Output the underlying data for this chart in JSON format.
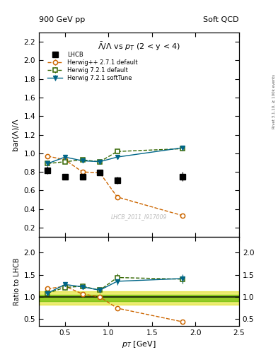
{
  "title_main": "$\\bar{\\Lambda}/\\Lambda$ vs $p_T$ (2 < y < 4)",
  "header_left": "900 GeV pp",
  "header_right": "Soft QCD",
  "right_label": "Rivet 3.1.10, ≥ 100k events",
  "watermark": "LHCB_2011_I917009",
  "xlabel": "$p_T$ [GeV]",
  "ylabel_main": "bar(Λ)/Λ",
  "ylabel_ratio": "Ratio to LHCB",
  "xlim": [
    0.2,
    2.5
  ],
  "ylim_main": [
    0.1,
    2.3
  ],
  "ylim_ratio": [
    0.35,
    2.35
  ],
  "lhcb_x": [
    0.3,
    0.5,
    0.7,
    0.9,
    1.1,
    1.85
  ],
  "lhcb_y": [
    0.82,
    0.75,
    0.75,
    0.79,
    0.71,
    0.75
  ],
  "lhcb_yerr": [
    0.04,
    0.03,
    0.03,
    0.03,
    0.04,
    0.05
  ],
  "herwig_pp_x": [
    0.3,
    0.5,
    0.7,
    0.9,
    1.1,
    1.85
  ],
  "herwig_pp_y": [
    0.97,
    0.93,
    0.8,
    0.79,
    0.53,
    0.33
  ],
  "herwig_pp_yerr": [
    0.02,
    0.02,
    0.02,
    0.02,
    0.02,
    0.02
  ],
  "herwig721d_x": [
    0.3,
    0.5,
    0.7,
    0.9,
    1.1,
    1.85
  ],
  "herwig721d_y": [
    0.89,
    0.91,
    0.93,
    0.91,
    1.02,
    1.05
  ],
  "herwig721d_yerr": [
    0.02,
    0.02,
    0.02,
    0.02,
    0.02,
    0.02
  ],
  "herwig721s_x": [
    0.3,
    0.5,
    0.7,
    0.9,
    1.1,
    1.85
  ],
  "herwig721s_y": [
    0.89,
    0.96,
    0.92,
    0.91,
    0.96,
    1.06
  ],
  "herwig721s_yerr": [
    0.02,
    0.02,
    0.02,
    0.02,
    0.02,
    0.02
  ],
  "color_lhcb": "#000000",
  "color_herwig_pp": "#cc6600",
  "color_herwig721d": "#336600",
  "color_herwig721s": "#006688",
  "band_yellow_lo": 0.82,
  "band_yellow_hi": 1.13,
  "band_green_lo": 0.9,
  "band_green_hi": 1.05,
  "yticks_main": [
    0.2,
    0.4,
    0.6,
    0.8,
    1.0,
    1.2,
    1.4,
    1.6,
    1.8,
    2.0,
    2.2
  ],
  "yticks_ratio": [
    0.5,
    1.0,
    1.5,
    2.0
  ]
}
